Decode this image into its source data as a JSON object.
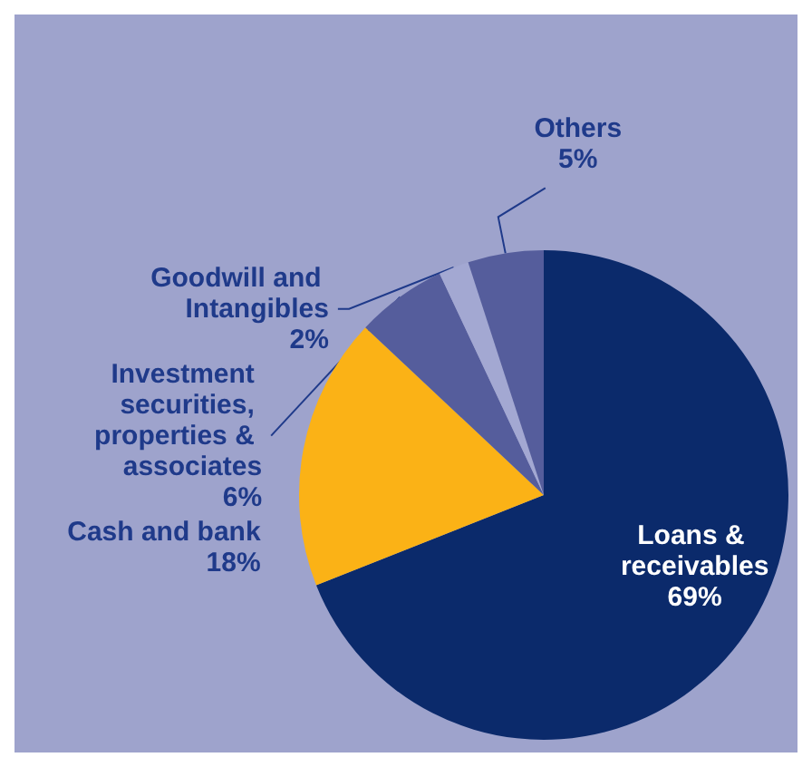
{
  "chart_data": {
    "type": "pie",
    "categories": [
      "Loans & receivables",
      "Cash and bank",
      "Investment securities, properties & associates",
      "Goodwill and Intangibles",
      "Others"
    ],
    "values": [
      69,
      18,
      6,
      2,
      5
    ],
    "value_labels": [
      "69%",
      "18%",
      "6%",
      "2%",
      "5%"
    ],
    "colors": [
      "#0b2a6b",
      "#fbb216",
      "#555d9c",
      "#a3a8d2",
      "#555d9c"
    ]
  }
}
